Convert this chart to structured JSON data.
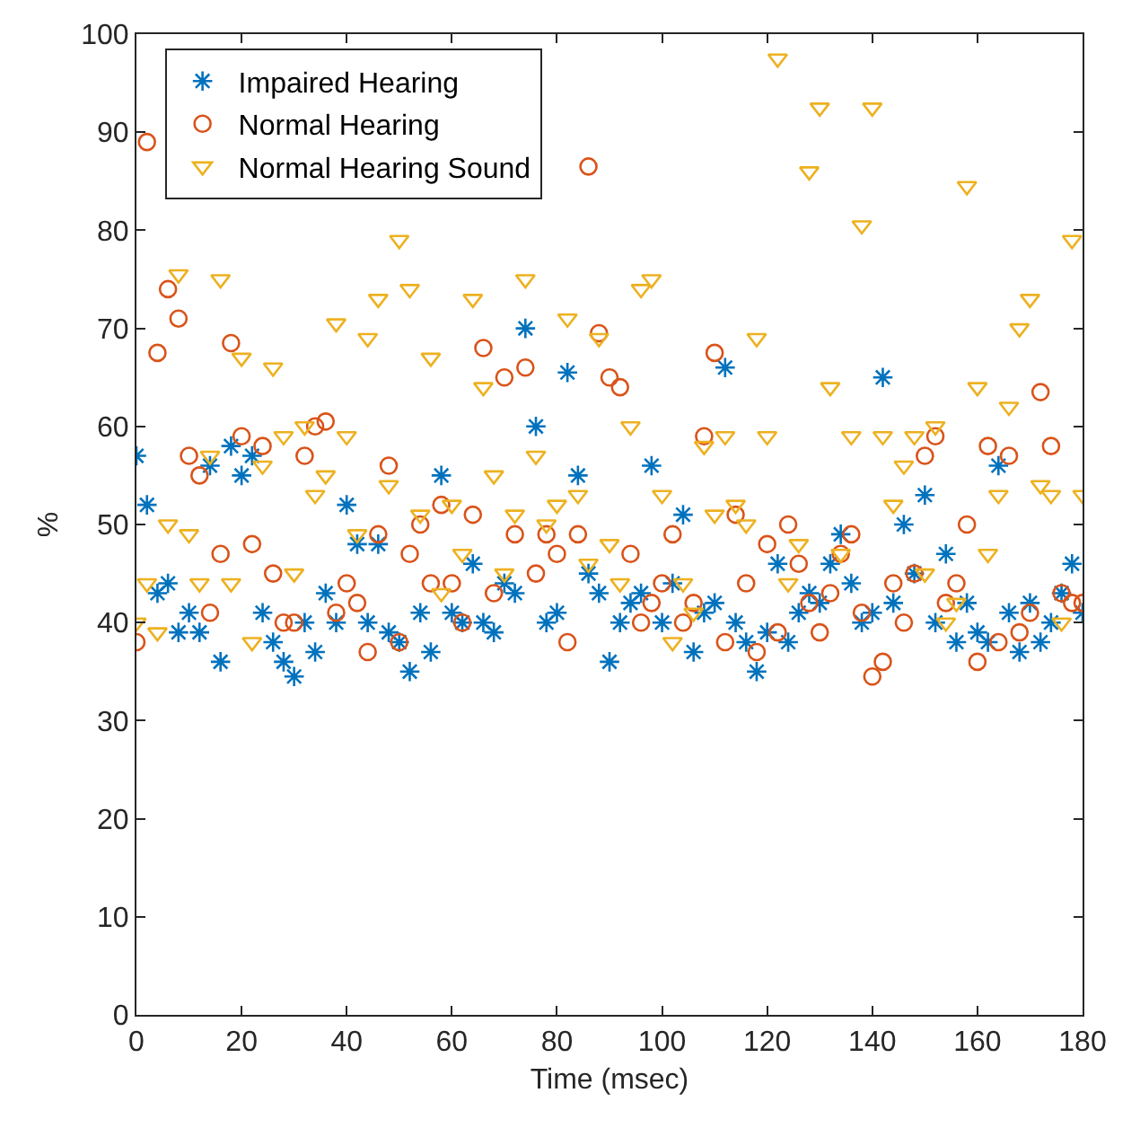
{
  "chart_data": {
    "type": "scatter",
    "xlabel": "Time (msec)",
    "ylabel": "%",
    "xlim": [
      0,
      180
    ],
    "ylim": [
      0,
      100
    ],
    "xticks": [
      0,
      20,
      40,
      60,
      80,
      100,
      120,
      140,
      160,
      180
    ],
    "yticks": [
      0,
      10,
      20,
      30,
      40,
      50,
      60,
      70,
      80,
      90,
      100
    ],
    "legend": "top left",
    "x": [
      0,
      2,
      4,
      6,
      8,
      10,
      12,
      14,
      16,
      18,
      20,
      22,
      24,
      26,
      28,
      30,
      32,
      34,
      36,
      38,
      40,
      42,
      44,
      46,
      48,
      50,
      52,
      54,
      56,
      58,
      60,
      62,
      64,
      66,
      68,
      70,
      72,
      74,
      76,
      78,
      80,
      82,
      84,
      86,
      88,
      90,
      92,
      94,
      96,
      98,
      100,
      102,
      104,
      106,
      108,
      110,
      112,
      114,
      116,
      118,
      120,
      122,
      124,
      126,
      128,
      130,
      132,
      134,
      136,
      138,
      140,
      142,
      144,
      146,
      148,
      150,
      152,
      154,
      156,
      158,
      160,
      162,
      164,
      166,
      168,
      170,
      172,
      174,
      176,
      178,
      180
    ],
    "series": [
      {
        "name": "Impaired Hearing",
        "color": "#0072bd",
        "marker": "cross",
        "values": [
          57,
          52,
          43,
          44,
          39,
          41,
          39,
          56,
          36,
          58,
          55,
          57,
          41,
          38,
          36,
          34.5,
          40,
          37,
          43,
          40,
          52,
          48,
          40,
          48,
          39,
          38,
          35,
          41,
          37,
          55,
          41,
          40,
          46,
          40,
          39,
          44,
          43,
          70,
          60,
          40,
          41,
          65.5,
          55,
          45,
          43,
          36,
          40,
          42,
          43,
          56,
          40,
          44,
          51,
          37,
          41,
          42,
          66,
          40,
          38,
          35,
          39,
          46,
          38,
          41,
          43,
          42,
          46,
          49,
          44,
          40,
          41,
          65,
          42,
          50,
          45,
          53,
          40,
          47,
          38,
          42,
          39,
          38,
          56,
          41,
          37,
          42,
          38,
          40,
          43,
          46,
          41
        ]
      },
      {
        "name": "Normal Hearing",
        "color": "#d95319",
        "marker": "circle",
        "values": [
          38,
          89,
          67.5,
          74,
          71,
          57,
          55,
          41,
          47,
          68.5,
          59,
          48,
          58,
          45,
          40,
          40,
          57,
          60,
          60.5,
          41,
          44,
          42,
          37,
          49,
          56,
          38,
          47,
          50,
          44,
          52,
          44,
          40,
          51,
          68,
          43,
          65,
          49,
          66,
          45,
          49,
          47,
          38,
          49,
          86.5,
          69.5,
          65,
          64,
          47,
          40,
          42,
          44,
          49,
          40,
          42,
          59,
          67.5,
          38,
          51,
          44,
          37,
          48,
          39,
          50,
          46,
          42,
          39,
          43,
          47,
          49,
          41,
          34.5,
          36,
          44,
          40,
          45,
          57,
          59,
          42,
          44,
          50,
          36,
          58,
          38,
          57,
          39,
          41,
          63.5,
          58,
          43,
          42,
          42
        ]
      },
      {
        "name": "Normal Hearing Sound",
        "color": "#edb120",
        "marker": "triangle",
        "values": [
          40,
          44,
          39,
          50,
          75.5,
          49,
          44,
          57,
          75,
          44,
          67,
          38,
          56,
          66,
          59,
          45,
          60,
          53,
          55,
          70.5,
          59,
          49,
          69,
          73,
          54,
          79,
          74,
          51,
          67,
          43,
          52,
          47,
          73,
          64,
          55,
          45,
          51,
          75,
          57,
          50,
          52,
          71,
          53,
          46,
          69,
          48,
          44,
          60,
          74,
          75,
          53,
          38,
          44,
          41,
          58,
          51,
          59,
          52,
          50,
          69,
          59,
          97.5,
          44,
          48,
          86,
          92.5,
          64,
          47,
          59,
          80.5,
          92.5,
          59,
          52,
          56,
          59,
          45,
          60,
          40,
          42,
          84.5,
          64,
          47,
          53,
          62,
          70,
          73,
          54,
          53,
          40,
          79,
          53
        ]
      }
    ]
  }
}
